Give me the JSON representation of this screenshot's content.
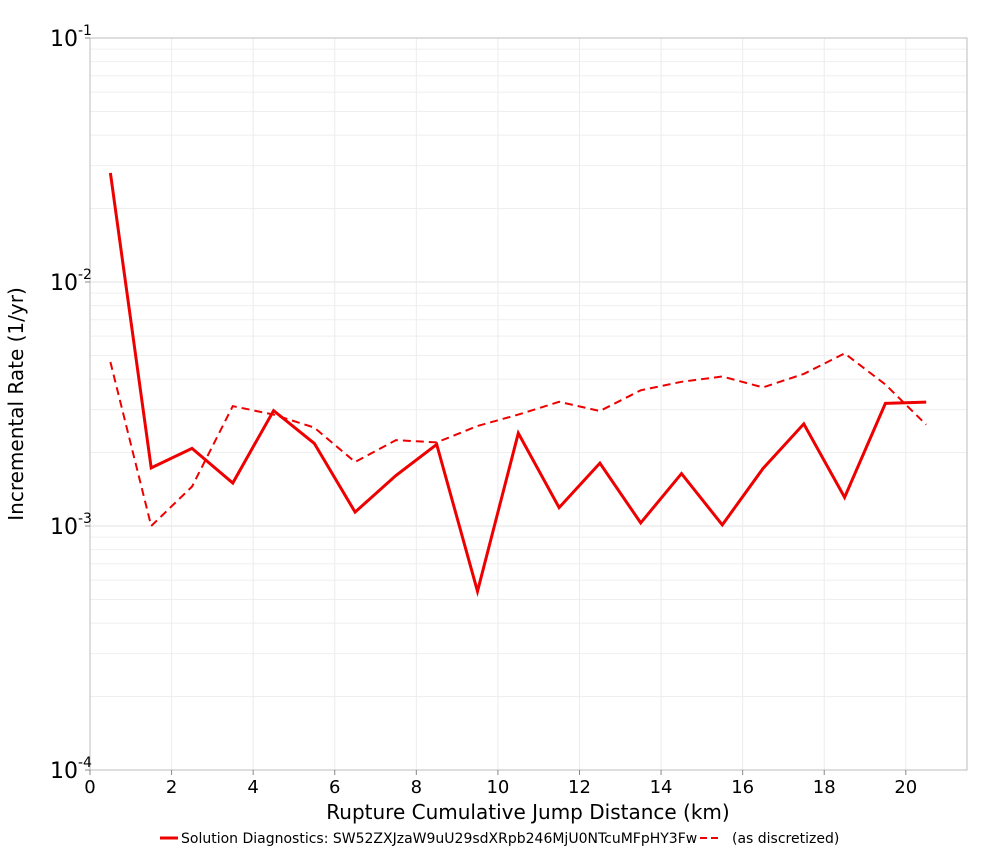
{
  "chart_data": {
    "type": "line",
    "title": "",
    "xlabel": "Rupture Cumulative Jump Distance (km)",
    "ylabel": "Incremental Rate (1/yr)",
    "xlim": [
      0,
      21.5
    ],
    "ylim": [
      0.0001,
      0.1
    ],
    "y_scale": "log",
    "grid": true,
    "legend_position": "bottom",
    "x_ticks": [
      "0",
      "2",
      "4",
      "6",
      "8",
      "10",
      "12",
      "14",
      "16",
      "18",
      "20"
    ],
    "y_ticks": [
      {
        "base": "10",
        "exp": "-4"
      },
      {
        "base": "10",
        "exp": "-3"
      },
      {
        "base": "10",
        "exp": "-2"
      },
      {
        "base": "10",
        "exp": "-1"
      }
    ],
    "series": [
      {
        "name": "Solution Diagnostics: SW52ZXJzaW9uU29sdXRpb246MjU0NTcuMFpHY3Fw",
        "color": "#ee0000",
        "style": "solid",
        "x": [
          0.5,
          1.5,
          2.5,
          3.5,
          4.5,
          5.5,
          6.5,
          7.5,
          8.5,
          9.5,
          10.5,
          11.5,
          12.5,
          13.5,
          14.5,
          15.5,
          16.5,
          17.5,
          18.5,
          19.5,
          20.5
        ],
        "y": [
          0.028,
          0.00173,
          0.00208,
          0.0015,
          0.00297,
          0.00218,
          0.00114,
          0.00161,
          0.00216,
          0.00054,
          0.0024,
          0.00119,
          0.00181,
          0.00103,
          0.00164,
          0.00101,
          0.00172,
          0.00262,
          0.00131,
          0.00318,
          0.00322
        ]
      },
      {
        "name": "(as discretized)",
        "color": "#ee0000",
        "style": "dashed",
        "x": [
          0.5,
          1.5,
          2.5,
          3.5,
          4.5,
          5.5,
          6.5,
          7.5,
          8.5,
          9.5,
          10.5,
          11.5,
          12.5,
          13.5,
          14.5,
          15.5,
          16.5,
          17.5,
          18.5,
          19.5,
          20.5
        ],
        "y": [
          0.0047,
          0.001,
          0.00145,
          0.0031,
          0.00286,
          0.00253,
          0.00183,
          0.00225,
          0.0022,
          0.00257,
          0.00286,
          0.00323,
          0.00296,
          0.0036,
          0.0039,
          0.0041,
          0.0037,
          0.0042,
          0.0051,
          0.0038,
          0.0026
        ]
      }
    ]
  }
}
